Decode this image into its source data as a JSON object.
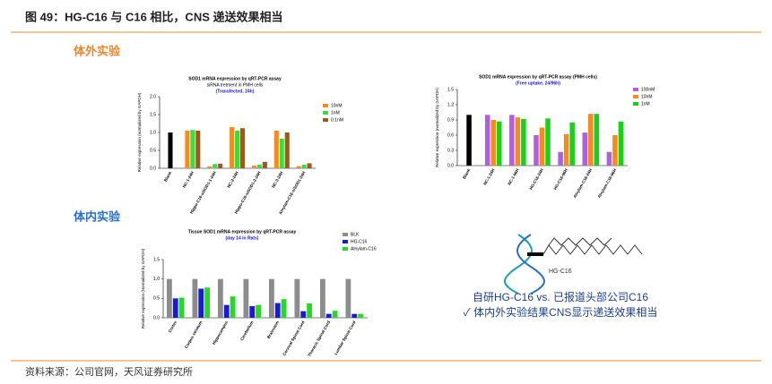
{
  "header": {
    "title": "图 49：HG-C16 与 C16 相比，CNS 递送效果相当"
  },
  "sections": [
    "体外实验",
    "体内实验"
  ],
  "diagram": {
    "label": "HG-C16",
    "caption": [
      "自研HG-C16 vs. 已报道头部公司C16",
      "✓ 体内外实验结果CNS显示递送效果相当"
    ]
  },
  "footer": "资料来源：公司官网，天风证券研究所",
  "chart_data": [
    {
      "type": "bar",
      "title": "SOD1 mRNA expression by qRT-PCR assay",
      "subtitle": "siRNA tretment in PMH cells",
      "note": "(Transfected, 24h)",
      "ylabel": "Relative expression (normalized by GAPDH)",
      "categories": [
        "Blank",
        "NC-1-24H",
        "Hippo-C16-siSOD1-1-24H",
        "NC-2-24H",
        "Hippo-C16-siSOD1-2-24H",
        "NC-3-24H",
        "Alnylam-C16-siSOD1-24H"
      ],
      "series": [
        {
          "color": "#000000",
          "legend": false,
          "values": [
            1.0,
            null,
            null,
            null,
            null,
            null,
            null
          ]
        },
        {
          "name": "10nM",
          "color": "#f58a1f",
          "values": [
            null,
            1.05,
            0.05,
            1.15,
            0.07,
            1.05,
            0.06
          ]
        },
        {
          "name": "1nM",
          "color": "#3ddc3d",
          "values": [
            null,
            1.07,
            0.12,
            1.05,
            0.1,
            0.83,
            0.1
          ]
        },
        {
          "name": "0.1nM",
          "color": "#9c5a1e",
          "values": [
            null,
            1.05,
            0.13,
            1.12,
            0.18,
            1.0,
            0.14
          ]
        }
      ],
      "ylim": [
        0,
        2.0
      ],
      "yticks": [
        {
          "value": 0,
          "label": "0.0"
        },
        {
          "value": 0.5,
          "label": "0.5"
        },
        {
          "value": 1,
          "label": "1.0"
        },
        {
          "value": 1.5,
          "label": "1.5"
        },
        {
          "value": 2,
          "label": "2.0"
        }
      ],
      "legend": "right"
    },
    {
      "type": "bar",
      "title": "SOD1 mRNA expression by qRT-PCR assay (PMH cells)",
      "note": "(Free uptake, 24/96h)",
      "ylabel": "Relative expression (normalized by GAPDH)",
      "categories": [
        "Blank",
        "NC-1-24H",
        "NC-1-96H",
        "HG-C16-24H",
        "HG-C16-96H",
        "Alnylam-C16-24H",
        "Alnylam-C16-96H"
      ],
      "series": [
        {
          "color": "#000000",
          "legend": false,
          "values": [
            1.0,
            null,
            null,
            null,
            null,
            null,
            null
          ]
        },
        {
          "name": "100nM",
          "color": "#b060d8",
          "values": [
            null,
            1.0,
            1.0,
            0.6,
            0.27,
            0.65,
            0.27
          ]
        },
        {
          "name": "10nM",
          "color": "#f58a1f",
          "values": [
            null,
            0.9,
            0.95,
            0.75,
            0.62,
            1.02,
            0.6
          ]
        },
        {
          "name": "1nM",
          "color": "#19d119",
          "values": [
            null,
            0.87,
            0.92,
            0.93,
            0.85,
            1.02,
            0.87
          ]
        }
      ],
      "ylim": [
        0,
        1.5
      ],
      "yticks": [
        {
          "value": 0,
          "label": "0.0"
        },
        {
          "value": 0.3,
          "label": "0.3"
        },
        {
          "value": 0.6,
          "label": "0.6"
        },
        {
          "value": 0.9,
          "label": "0.9"
        },
        {
          "value": 1.2,
          "label": "1.2"
        },
        {
          "value": 1.5,
          "label": "1.5"
        }
      ],
      "legend": "right"
    },
    {
      "type": "bar",
      "title": "Tissue SOD1 mRNA expression by qRT-PCR assay",
      "note": "(day 14 in Rats)",
      "ylabel": "Relative expression (Normalized by GAPDH)",
      "categories": [
        "Cortex",
        "Corpus striatum",
        "Hippocampus",
        "Cerebellum",
        "Brainstem",
        "Cervical Spinal Cord",
        "Thoracic Spinal Cord",
        "Lumbar Spinal Cord"
      ],
      "series": [
        {
          "name": "BLK",
          "color": "#8c8c8c",
          "values": [
            1.0,
            1.0,
            1.0,
            1.0,
            1.0,
            1.0,
            1.0,
            1.0
          ]
        },
        {
          "name": "HG-C16",
          "color": "#1a1ad6",
          "values": [
            0.5,
            0.75,
            0.33,
            0.3,
            0.38,
            0.17,
            0.1,
            0.1
          ]
        },
        {
          "name": "Alnylam-C16",
          "color": "#27d827",
          "values": [
            0.52,
            0.78,
            0.55,
            0.33,
            0.48,
            0.37,
            0.18,
            0.1
          ]
        }
      ],
      "ylim": [
        0,
        1.5
      ],
      "yticks": [
        {
          "value": 0,
          "label": "0.0"
        },
        {
          "value": 0.5,
          "label": "0.5"
        },
        {
          "value": 1,
          "label": "1.0"
        },
        {
          "value": 1.5,
          "label": "1.5"
        }
      ],
      "legend": "top-right"
    }
  ]
}
